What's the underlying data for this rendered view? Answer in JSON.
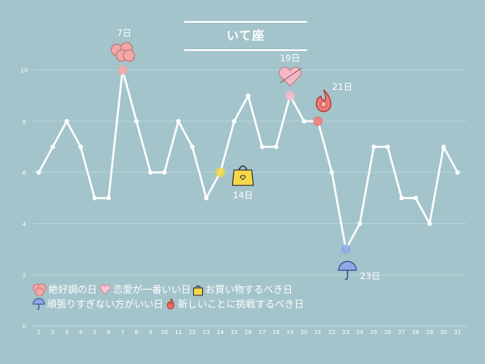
{
  "chart_data": {
    "type": "line",
    "title": "いて座",
    "x": [
      1,
      2,
      3,
      4,
      5,
      6,
      7,
      8,
      9,
      10,
      11,
      12,
      13,
      14,
      15,
      16,
      17,
      18,
      19,
      20,
      21,
      22,
      23,
      24,
      25,
      26,
      27,
      28,
      29,
      30,
      31
    ],
    "values": [
      6,
      7,
      8,
      7,
      5,
      5,
      10,
      8,
      6,
      6,
      8,
      7,
      5,
      6,
      8,
      9,
      7,
      7,
      9,
      8,
      8,
      6,
      3,
      4,
      7,
      7,
      5,
      5,
      4,
      7,
      6
    ],
    "ylim": [
      0,
      11
    ],
    "yticks": [
      0,
      2,
      4,
      6,
      8,
      10
    ],
    "grid": true,
    "line_color": "#ffffff",
    "background_color": "#a3c4ca",
    "annotations": [
      {
        "day": 7,
        "label": "7日",
        "icon": "heart-cluster-icon",
        "color": "#f2a7a7"
      },
      {
        "day": 19,
        "label": "19日",
        "icon": "love-heart-icon",
        "color": "#f5b8c4"
      },
      {
        "day": 21,
        "label": "21日",
        "icon": "fire-icon",
        "color": "#f07878"
      },
      {
        "day": 14,
        "label": "14日",
        "icon": "shopping-bag-icon",
        "color": "#f4d84a"
      },
      {
        "day": 23,
        "label": "23日",
        "icon": "umbrella-icon",
        "color": "#8fa8e8"
      }
    ],
    "legend": [
      {
        "label": "絶好調の日",
        "icon": "heart-cluster-icon"
      },
      {
        "label": "恋愛が一番いい日",
        "icon": "love-heart-icon"
      },
      {
        "label": "お買い物するべき日",
        "icon": "shopping-bag-icon"
      },
      {
        "label": "頑張りすぎない方がいい日",
        "icon": "umbrella-icon"
      },
      {
        "label": "新しいことに挑戦するべき日",
        "icon": "fire-icon"
      }
    ]
  }
}
